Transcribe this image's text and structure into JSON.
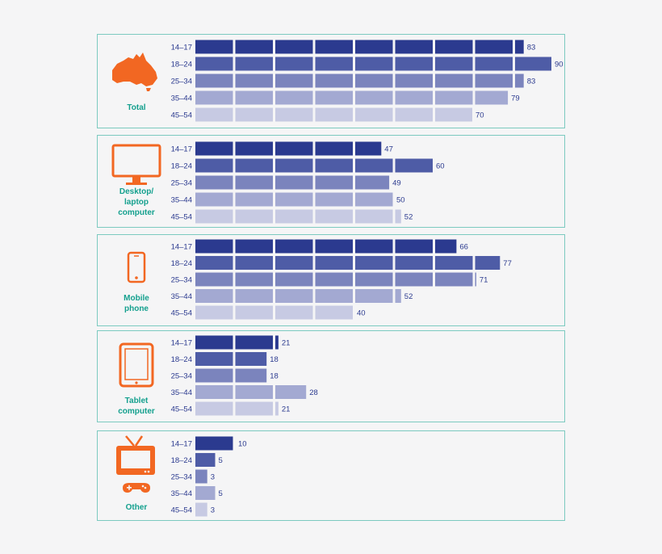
{
  "colors": {
    "border": "#7ccac0",
    "label": "#14a08e",
    "icon": "#f26722",
    "text": "#2b3a8f",
    "rows": [
      "#2b3a8f",
      "#4e5ca6",
      "#7b84bd",
      "#a3a9d2",
      "#c7cae3"
    ]
  },
  "chart_data": [
    {
      "type": "bar",
      "orientation": "horizontal",
      "panel_label": "Total",
      "icon": "australia-map-icon",
      "categories": [
        "14–17",
        "18–24",
        "25–34",
        "35–44",
        "45–54"
      ],
      "values": [
        83,
        90,
        83,
        79,
        70
      ]
    },
    {
      "type": "bar",
      "orientation": "horizontal",
      "panel_label": "Desktop/\nlaptop\ncomputer",
      "icon": "desktop-monitor-icon",
      "categories": [
        "14–17",
        "18–24",
        "25–34",
        "35–44",
        "45–54"
      ],
      "values": [
        47,
        60,
        49,
        50,
        52
      ]
    },
    {
      "type": "bar",
      "orientation": "horizontal",
      "panel_label": "Mobile\nphone",
      "icon": "mobile-phone-icon",
      "categories": [
        "14–17",
        "18–24",
        "25–34",
        "35–44",
        "45–54"
      ],
      "values": [
        66,
        77,
        71,
        52,
        40
      ]
    },
    {
      "type": "bar",
      "orientation": "horizontal",
      "panel_label": "Tablet\ncomputer",
      "icon": "tablet-icon",
      "categories": [
        "14–17",
        "18–24",
        "25–34",
        "35–44",
        "45–54"
      ],
      "values": [
        21,
        18,
        18,
        28,
        21
      ]
    },
    {
      "type": "bar",
      "orientation": "horizontal",
      "panel_label": "Other",
      "icon": "tv-and-gamepad-icon",
      "categories": [
        "14–17",
        "18–24",
        "25–34",
        "35–44",
        "45–54"
      ],
      "values": [
        10,
        5,
        3,
        5,
        3
      ]
    }
  ]
}
